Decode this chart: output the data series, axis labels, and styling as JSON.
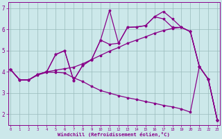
{
  "xlabel": "Windchill (Refroidissement éolien,°C)",
  "bg_color": "#cce8ea",
  "line_color": "#880088",
  "grid_color": "#99bbbb",
  "line1_x": [
    0,
    1,
    2,
    3,
    4,
    5,
    6,
    7,
    8,
    9,
    10,
    11,
    12,
    13,
    14,
    15,
    16,
    17,
    18,
    19,
    20,
    21,
    22,
    23
  ],
  "line1_y": [
    4.1,
    3.62,
    3.62,
    3.85,
    3.98,
    3.98,
    3.95,
    3.72,
    3.55,
    3.32,
    3.12,
    3.0,
    2.88,
    2.78,
    2.7,
    2.6,
    2.52,
    2.42,
    2.35,
    2.25,
    2.1,
    4.25,
    3.65,
    1.72
  ],
  "line2_x": [
    0,
    1,
    2,
    3,
    4,
    5,
    6,
    7,
    8,
    9,
    10,
    11,
    12,
    13,
    14,
    15,
    16,
    17,
    18,
    19,
    20,
    21,
    22,
    23
  ],
  "line2_y": [
    4.1,
    3.62,
    3.62,
    3.88,
    4.0,
    4.08,
    4.15,
    4.22,
    4.38,
    4.58,
    4.78,
    4.98,
    5.15,
    5.35,
    5.5,
    5.65,
    5.82,
    5.95,
    6.05,
    6.1,
    5.9,
    4.25,
    3.65,
    1.72
  ],
  "line3_x": [
    0,
    1,
    2,
    3,
    4,
    5,
    6,
    7,
    8,
    9,
    10,
    11,
    12,
    13,
    14,
    15,
    16,
    17,
    18,
    19,
    20,
    21,
    22,
    23
  ],
  "line3_y": [
    4.1,
    3.62,
    3.62,
    3.88,
    4.0,
    4.82,
    5.0,
    3.6,
    4.3,
    4.58,
    5.5,
    5.3,
    5.35,
    6.1,
    6.12,
    6.18,
    6.6,
    6.5,
    6.1,
    6.1,
    5.9,
    4.25,
    3.65,
    1.72
  ],
  "line4_x": [
    0,
    1,
    2,
    3,
    4,
    5,
    6,
    7,
    8,
    9,
    10,
    11,
    12,
    13,
    14,
    15,
    16,
    17,
    18,
    19,
    20,
    21,
    22,
    23
  ],
  "line4_y": [
    4.1,
    3.62,
    3.62,
    3.88,
    4.0,
    4.82,
    5.0,
    3.6,
    4.3,
    4.58,
    5.5,
    6.9,
    5.35,
    6.1,
    6.12,
    6.18,
    6.6,
    6.85,
    6.5,
    6.1,
    5.9,
    4.25,
    3.65,
    1.72
  ],
  "ylim": [
    1.5,
    7.3
  ],
  "xlim": [
    -0.3,
    23.3
  ],
  "yticks": [
    2,
    3,
    4,
    5,
    6,
    7
  ],
  "xticks": [
    0,
    1,
    2,
    3,
    4,
    5,
    6,
    7,
    8,
    9,
    10,
    11,
    12,
    13,
    14,
    15,
    16,
    17,
    18,
    19,
    20,
    21,
    22,
    23
  ]
}
